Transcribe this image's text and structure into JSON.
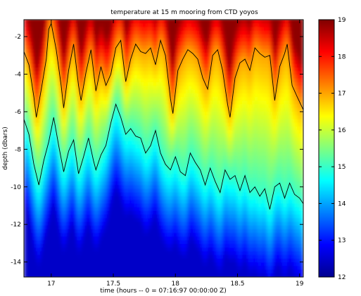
{
  "chart_data": {
    "type": "heatmap",
    "title": "temperature at 15 m mooring from CTD yoyos",
    "xlabel": "time (hours -- 0 = 07:16:97 00:00:00 Z)",
    "ylabel": "depth (dbars)",
    "xlim": [
      16.78,
      19.03
    ],
    "ylim": [
      -14.8,
      -1.1
    ],
    "xticks": [
      17,
      17.5,
      18,
      18.5,
      19
    ],
    "xtick_labels": [
      "17",
      "17.5",
      "18",
      "18.5",
      "19"
    ],
    "yticks": [
      -2,
      -4,
      -6,
      -8,
      -10,
      -12,
      -14
    ],
    "ytick_labels": [
      "-2",
      "-4",
      "-6",
      "-8",
      "-10",
      "-12",
      "-14"
    ],
    "colorbar": {
      "range": [
        12,
        19
      ],
      "ticks": [
        12,
        13,
        14,
        15,
        16,
        17,
        18,
        19
      ],
      "tick_labels": [
        "12",
        "13",
        "14",
        "15",
        "16",
        "17",
        "18",
        "19"
      ],
      "colormap": "jet"
    },
    "contours": [
      {
        "level": 17,
        "points": [
          [
            16.78,
            -2.8
          ],
          [
            16.82,
            -3.5
          ],
          [
            16.86,
            -5.2
          ],
          [
            16.88,
            -6.3
          ],
          [
            16.92,
            -4.8
          ],
          [
            16.96,
            -3.2
          ],
          [
            16.98,
            -1.6
          ],
          [
            17.0,
            -1.3
          ],
          [
            17.04,
            -2.7
          ],
          [
            17.08,
            -4.6
          ],
          [
            17.1,
            -5.8
          ],
          [
            17.14,
            -3.8
          ],
          [
            17.18,
            -2.4
          ],
          [
            17.22,
            -4.6
          ],
          [
            17.24,
            -5.4
          ],
          [
            17.28,
            -3.9
          ],
          [
            17.32,
            -2.7
          ],
          [
            17.36,
            -4.9
          ],
          [
            17.4,
            -3.6
          ],
          [
            17.44,
            -4.6
          ],
          [
            17.48,
            -4.0
          ],
          [
            17.52,
            -2.6
          ],
          [
            17.56,
            -2.2
          ],
          [
            17.6,
            -4.4
          ],
          [
            17.64,
            -3.2
          ],
          [
            17.68,
            -2.4
          ],
          [
            17.72,
            -2.8
          ],
          [
            17.76,
            -2.9
          ],
          [
            17.8,
            -2.6
          ],
          [
            17.84,
            -3.5
          ],
          [
            17.88,
            -2.2
          ],
          [
            17.92,
            -3.0
          ],
          [
            17.96,
            -5.3
          ],
          [
            17.98,
            -6.1
          ],
          [
            18.02,
            -3.8
          ],
          [
            18.06,
            -3.2
          ],
          [
            18.1,
            -2.7
          ],
          [
            18.14,
            -2.9
          ],
          [
            18.18,
            -3.2
          ],
          [
            18.22,
            -4.2
          ],
          [
            18.26,
            -4.8
          ],
          [
            18.3,
            -3.0
          ],
          [
            18.34,
            -2.7
          ],
          [
            18.38,
            -3.8
          ],
          [
            18.42,
            -5.6
          ],
          [
            18.44,
            -6.3
          ],
          [
            18.48,
            -4.2
          ],
          [
            18.52,
            -3.4
          ],
          [
            18.56,
            -3.2
          ],
          [
            18.6,
            -3.8
          ],
          [
            18.64,
            -2.6
          ],
          [
            18.68,
            -2.9
          ],
          [
            18.72,
            -3.1
          ],
          [
            18.76,
            -3.0
          ],
          [
            18.8,
            -5.4
          ],
          [
            18.84,
            -3.6
          ],
          [
            18.88,
            -2.9
          ],
          [
            18.9,
            -2.4
          ],
          [
            18.94,
            -4.6
          ],
          [
            18.98,
            -5.2
          ],
          [
            19.03,
            -5.9
          ]
        ]
      },
      {
        "level": 15,
        "points": [
          [
            16.78,
            -6.4
          ],
          [
            16.82,
            -7.2
          ],
          [
            16.86,
            -8.8
          ],
          [
            16.9,
            -9.9
          ],
          [
            16.94,
            -8.6
          ],
          [
            16.98,
            -7.6
          ],
          [
            17.02,
            -6.3
          ],
          [
            17.06,
            -7.8
          ],
          [
            17.1,
            -9.2
          ],
          [
            17.14,
            -8.1
          ],
          [
            17.18,
            -7.5
          ],
          [
            17.22,
            -9.3
          ],
          [
            17.26,
            -8.4
          ],
          [
            17.3,
            -7.4
          ],
          [
            17.34,
            -8.6
          ],
          [
            17.36,
            -9.1
          ],
          [
            17.4,
            -8.3
          ],
          [
            17.44,
            -7.8
          ],
          [
            17.48,
            -6.6
          ],
          [
            17.52,
            -5.6
          ],
          [
            17.56,
            -6.3
          ],
          [
            17.6,
            -7.2
          ],
          [
            17.64,
            -6.9
          ],
          [
            17.68,
            -7.3
          ],
          [
            17.72,
            -7.4
          ],
          [
            17.76,
            -8.2
          ],
          [
            17.8,
            -7.8
          ],
          [
            17.84,
            -7.0
          ],
          [
            17.88,
            -8.2
          ],
          [
            17.92,
            -8.8
          ],
          [
            17.96,
            -9.1
          ],
          [
            18.0,
            -8.4
          ],
          [
            18.04,
            -9.2
          ],
          [
            18.08,
            -9.4
          ],
          [
            18.12,
            -8.2
          ],
          [
            18.16,
            -8.7
          ],
          [
            18.2,
            -9.1
          ],
          [
            18.24,
            -9.9
          ],
          [
            18.28,
            -9.0
          ],
          [
            18.32,
            -9.7
          ],
          [
            18.36,
            -10.3
          ],
          [
            18.4,
            -9.1
          ],
          [
            18.44,
            -9.6
          ],
          [
            18.48,
            -9.4
          ],
          [
            18.52,
            -10.2
          ],
          [
            18.56,
            -9.4
          ],
          [
            18.6,
            -10.3
          ],
          [
            18.64,
            -10.0
          ],
          [
            18.68,
            -10.5
          ],
          [
            18.72,
            -10.1
          ],
          [
            18.76,
            -11.2
          ],
          [
            18.8,
            -10.0
          ],
          [
            18.84,
            -9.8
          ],
          [
            18.88,
            -10.6
          ],
          [
            18.92,
            -9.8
          ],
          [
            18.96,
            -10.4
          ],
          [
            19.0,
            -10.6
          ],
          [
            19.03,
            -10.9
          ]
        ]
      }
    ]
  }
}
